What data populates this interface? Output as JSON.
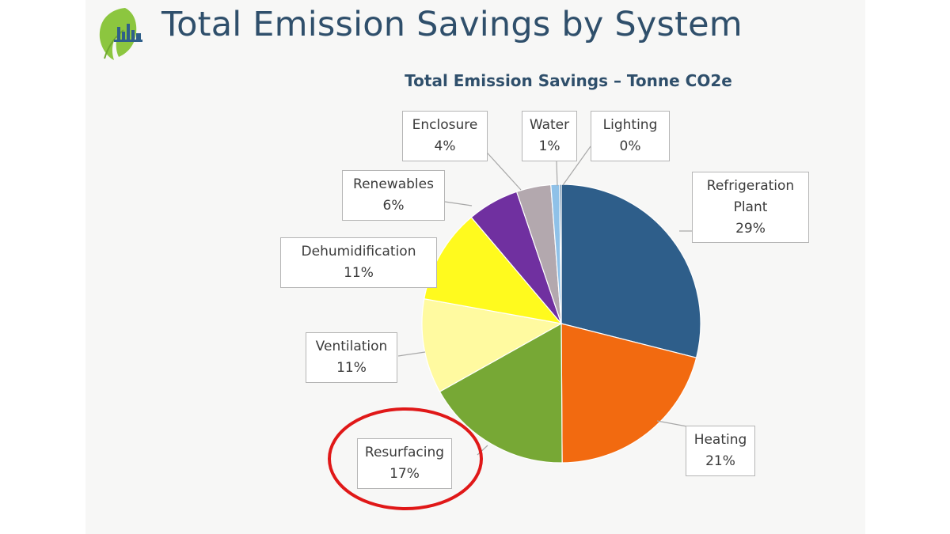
{
  "page": {
    "title": "Total Emission Savings by System"
  },
  "logo": {
    "icon": "leaf-city-logo-icon",
    "colors": [
      "#8cc63f",
      "#2f5f8a"
    ]
  },
  "highlight": {
    "target": "Resurfacing",
    "color": "#e01818"
  },
  "chart_data": {
    "type": "pie",
    "title": "Total Emission Savings – Tonne CO2e",
    "start_angle_deg": 0,
    "direction": "clockwise",
    "slices": [
      {
        "name": "Refrigeration Plant",
        "label_lines": [
          "Refrigeration",
          "Plant"
        ],
        "value": 29,
        "pct": "29%",
        "color": "#2e5e8a"
      },
      {
        "name": "Heating",
        "label_lines": [
          "Heating"
        ],
        "value": 21,
        "pct": "21%",
        "color": "#f26a10"
      },
      {
        "name": "Resurfacing",
        "label_lines": [
          "Resurfacing"
        ],
        "value": 17,
        "pct": "17%",
        "color": "#77a835"
      },
      {
        "name": "Ventilation",
        "label_lines": [
          "Ventilation"
        ],
        "value": 11,
        "pct": "11%",
        "color": "#fffaa0"
      },
      {
        "name": "Dehumidification",
        "label_lines": [
          "Dehumidification"
        ],
        "value": 11,
        "pct": "11%",
        "color": "#fffa1e"
      },
      {
        "name": "Renewables",
        "label_lines": [
          "Renewables"
        ],
        "value": 6,
        "pct": "6%",
        "color": "#7030a0"
      },
      {
        "name": "Enclosure",
        "label_lines": [
          "Enclosure"
        ],
        "value": 4,
        "pct": "4%",
        "color": "#b3a8ae"
      },
      {
        "name": "Water",
        "label_lines": [
          "Water"
        ],
        "value": 1,
        "pct": "1%",
        "color": "#8fc1e8"
      },
      {
        "name": "Lighting",
        "label_lines": [
          "Lighting"
        ],
        "value": 0.2,
        "pct": "0%",
        "color": "#2e5e8a"
      }
    ]
  }
}
